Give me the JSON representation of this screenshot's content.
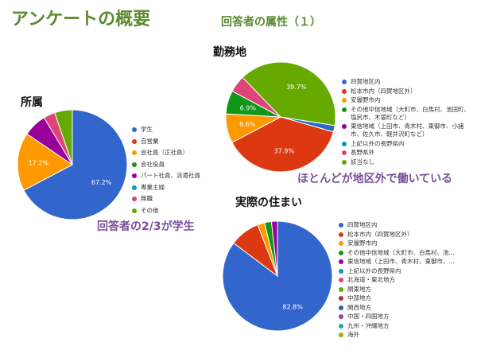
{
  "slide": {
    "title": "アンケートの概要",
    "subtitle": "回答者の属性（１）"
  },
  "callouts": {
    "affiliation_note": "回答者の2/3が学生",
    "workplace_note": "ほとんどが地区外で働いている"
  },
  "chart_data": [
    {
      "id": "affiliation",
      "type": "pie",
      "title": "所属",
      "start_angle_deg": -90,
      "slices": [
        {
          "label": "学生",
          "value": 67.2,
          "color": "#3366cc",
          "show_label": true
        },
        {
          "label": "自営業",
          "value": 0,
          "color": "#dc3912",
          "show_label": false
        },
        {
          "label": "会社員（正社員）",
          "value": 17.2,
          "color": "#ff9900",
          "show_label": true
        },
        {
          "label": "会社役員",
          "value": 0,
          "color": "#109618",
          "show_label": false
        },
        {
          "label": "パート社員、派遣社員",
          "value": 6.9,
          "color": "#990099",
          "show_label": false
        },
        {
          "label": "専業主婦",
          "value": 0,
          "color": "#0099c6",
          "show_label": false
        },
        {
          "label": "無職",
          "value": 3.4,
          "color": "#dd4477",
          "show_label": false
        },
        {
          "label": "その他",
          "value": 5.2,
          "color": "#66aa00",
          "show_label": false
        }
      ]
    },
    {
      "id": "workplace",
      "type": "pie",
      "title": "勤務地",
      "start_angle_deg": 9,
      "slices": [
        {
          "label": "四賀地区内",
          "value": 1.9,
          "color": "#3366cc",
          "show_label": false
        },
        {
          "label": "松本市内（四賀地区外）",
          "value": 37.9,
          "color": "#dc3912",
          "show_label": true
        },
        {
          "label": "安曇野市内",
          "value": 8.6,
          "color": "#ff9900",
          "show_label": true
        },
        {
          "label": "その他中信地域（大町市、白馬村、池田町、塩尻市、木曽町など）",
          "value": 6.9,
          "color": "#109618",
          "show_label": true
        },
        {
          "label": "東信地域（上田市、青木村、東御市、小諸市、佐久市、軽井沢町など）",
          "value": 0,
          "color": "#990099",
          "show_label": false
        },
        {
          "label": "上記以外の長野県内",
          "value": 0,
          "color": "#0099c6",
          "show_label": false
        },
        {
          "label": "長野県外",
          "value": 5.0,
          "color": "#dd4477",
          "show_label": false
        },
        {
          "label": "該当なし",
          "value": 39.7,
          "color": "#66aa00",
          "show_label": true
        }
      ]
    },
    {
      "id": "residence",
      "type": "pie",
      "title": "実際の住まい",
      "start_angle_deg": -90,
      "slices": [
        {
          "label": "四賀地区内",
          "value": 82.8,
          "color": "#3366cc",
          "show_label": true
        },
        {
          "label": "松本市内（四賀地区外）",
          "value": 8.6,
          "color": "#dc3912",
          "show_label": false
        },
        {
          "label": "安曇野市内",
          "value": 2.0,
          "color": "#ff9900",
          "show_label": false
        },
        {
          "label": "その他中信地域（大町市、白馬村、池...",
          "value": 2.0,
          "color": "#109618",
          "show_label": false
        },
        {
          "label": "東信地域（上田市、青木村、東御市、...",
          "value": 1.7,
          "color": "#990099",
          "show_label": false
        },
        {
          "label": "上記以外の長野県内",
          "value": 0,
          "color": "#0099c6",
          "show_label": false
        },
        {
          "label": "北海道・東北地方",
          "value": 0,
          "color": "#dd4477",
          "show_label": false
        },
        {
          "label": "関東地方",
          "value": 0,
          "color": "#66aa00",
          "show_label": false
        },
        {
          "label": "中部地方",
          "value": 0,
          "color": "#b82e2e",
          "show_label": false
        },
        {
          "label": "関西地方",
          "value": 0,
          "color": "#316395",
          "show_label": false
        },
        {
          "label": "中国・四国地方",
          "value": 0,
          "color": "#994499",
          "show_label": false
        },
        {
          "label": "九州・沖縄地方",
          "value": 0,
          "color": "#22aa99",
          "show_label": false
        },
        {
          "label": "海外",
          "value": 0,
          "color": "#aaaa11",
          "show_label": false
        }
      ]
    }
  ]
}
